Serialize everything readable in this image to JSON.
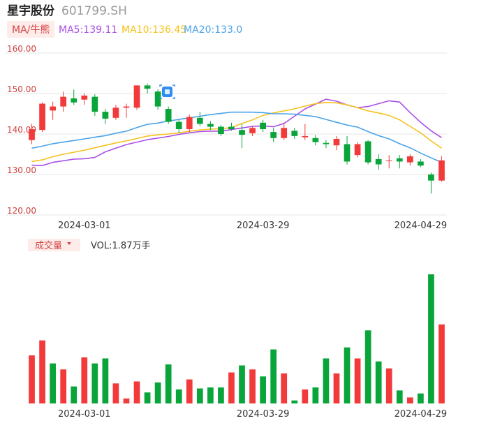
{
  "header": {
    "stock_name": "星宇股份",
    "stock_code": "601799.SH",
    "ma_mode": "MA/牛熊",
    "ma5": "MA5:139.11",
    "ma10": "MA10:136.45",
    "ma20": "MA20:133.0"
  },
  "volume_header": {
    "label": "成交量",
    "vol": "VOL:1.87万手"
  },
  "colors": {
    "up": "#f23a3a",
    "down": "#0aa53a",
    "ma5": "#a94ee6",
    "ma10": "#f5c21b",
    "ma20": "#4aa3ea",
    "axis_text": "#d14040",
    "grid": "#e6e6e6",
    "badge_bg": "#fdecea",
    "badge_text": "#d64545"
  },
  "chart_data": [
    {
      "type": "candlestick",
      "title": "",
      "ylim": [
        120,
        160
      ],
      "yticks": [
        "160.00",
        "150.00",
        "140.00",
        "130.00",
        "120.00"
      ],
      "x_tick_labels": [
        {
          "index": 5,
          "label": "2024-03-01"
        },
        {
          "index": 22,
          "label": "2024-03-29"
        },
        {
          "index": 37,
          "label": "2024-04-29"
        }
      ],
      "candles": [
        {
          "o": 138.5,
          "c": 141.2,
          "h": 142.5,
          "l": 137.5
        },
        {
          "o": 141.0,
          "c": 147.5,
          "h": 147.8,
          "l": 140.5
        },
        {
          "o": 145.8,
          "c": 146.8,
          "h": 148.0,
          "l": 143.5
        },
        {
          "o": 146.8,
          "c": 149.2,
          "h": 150.5,
          "l": 145.5
        },
        {
          "o": 148.8,
          "c": 147.8,
          "h": 151.0,
          "l": 147.2
        },
        {
          "o": 148.5,
          "c": 149.5,
          "h": 150.0,
          "l": 147.2
        },
        {
          "o": 149.2,
          "c": 145.5,
          "h": 149.8,
          "l": 144.5
        },
        {
          "o": 145.5,
          "c": 143.8,
          "h": 146.2,
          "l": 142.5
        },
        {
          "o": 144.0,
          "c": 146.5,
          "h": 147.2,
          "l": 143.5
        },
        {
          "o": 146.5,
          "c": 146.8,
          "h": 147.5,
          "l": 144.0
        },
        {
          "o": 146.5,
          "c": 152.0,
          "h": 152.0,
          "l": 146.0
        },
        {
          "o": 152.0,
          "c": 151.2,
          "h": 152.5,
          "l": 150.0
        },
        {
          "o": 150.5,
          "c": 146.8,
          "h": 151.0,
          "l": 146.0
        },
        {
          "o": 146.2,
          "c": 143.0,
          "h": 146.8,
          "l": 142.5
        },
        {
          "o": 143.0,
          "c": 141.2,
          "h": 143.5,
          "l": 140.2
        },
        {
          "o": 141.2,
          "c": 144.2,
          "h": 144.8,
          "l": 140.5
        },
        {
          "o": 144.0,
          "c": 142.5,
          "h": 145.5,
          "l": 142.0
        },
        {
          "o": 142.5,
          "c": 141.8,
          "h": 143.2,
          "l": 141.0
        },
        {
          "o": 141.8,
          "c": 140.0,
          "h": 142.2,
          "l": 139.5
        },
        {
          "o": 141.8,
          "c": 141.2,
          "h": 142.8,
          "l": 140.8
        },
        {
          "o": 141.0,
          "c": 139.8,
          "h": 142.5,
          "l": 136.5
        },
        {
          "o": 140.2,
          "c": 141.5,
          "h": 142.0,
          "l": 139.5
        },
        {
          "o": 142.8,
          "c": 141.2,
          "h": 143.5,
          "l": 140.5
        },
        {
          "o": 140.5,
          "c": 139.0,
          "h": 141.5,
          "l": 138.0
        },
        {
          "o": 139.0,
          "c": 141.5,
          "h": 142.8,
          "l": 138.5
        },
        {
          "o": 140.8,
          "c": 139.5,
          "h": 141.5,
          "l": 138.8
        },
        {
          "o": 139.2,
          "c": 139.5,
          "h": 142.5,
          "l": 138.5
        },
        {
          "o": 139.0,
          "c": 138.0,
          "h": 139.8,
          "l": 137.2
        },
        {
          "o": 137.8,
          "c": 137.5,
          "h": 138.5,
          "l": 136.5
        },
        {
          "o": 137.2,
          "c": 138.8,
          "h": 139.5,
          "l": 136.0
        },
        {
          "o": 137.5,
          "c": 133.2,
          "h": 139.5,
          "l": 132.5
        },
        {
          "o": 134.8,
          "c": 137.5,
          "h": 138.0,
          "l": 134.2
        },
        {
          "o": 138.2,
          "c": 133.0,
          "h": 138.5,
          "l": 132.5
        },
        {
          "o": 133.8,
          "c": 132.5,
          "h": 135.0,
          "l": 131.2
        },
        {
          "o": 133.5,
          "c": 133.5,
          "h": 134.8,
          "l": 131.5
        },
        {
          "o": 134.0,
          "c": 133.2,
          "h": 134.8,
          "l": 131.5
        },
        {
          "o": 133.0,
          "c": 134.5,
          "h": 135.0,
          "l": 132.2
        },
        {
          "o": 133.2,
          "c": 132.2,
          "h": 133.8,
          "l": 131.8
        },
        {
          "o": 130.0,
          "c": 128.5,
          "h": 130.5,
          "l": 125.3
        },
        {
          "o": 128.5,
          "c": 133.5,
          "h": 134.5,
          "l": 128.2
        }
      ],
      "series": [
        {
          "name": "MA5",
          "values": [
            132.3,
            132.2,
            133.0,
            133.4,
            133.8,
            133.9,
            134.2,
            135.6,
            136.5,
            137.4,
            138.0,
            138.6,
            139.0,
            139.4,
            139.9,
            140.3,
            140.6,
            140.7,
            140.7,
            141.1,
            141.5,
            141.9,
            142.0,
            141.8,
            142.6,
            144.4,
            146.2,
            147.4,
            148.6,
            148.1,
            147.2,
            146.5,
            146.8,
            147.5,
            148.2,
            147.9,
            145.3,
            142.9,
            140.8,
            139.1
          ]
        },
        {
          "name": "MA10",
          "values": [
            133.2,
            133.6,
            134.4,
            135.0,
            135.5,
            136.0,
            136.6,
            137.2,
            137.8,
            138.3,
            138.9,
            139.5,
            139.8,
            140.0,
            140.3,
            140.7,
            141.0,
            141.2,
            141.3,
            141.6,
            142.6,
            143.5,
            144.6,
            145.2,
            145.7,
            146.2,
            146.9,
            147.5,
            147.8,
            147.7,
            147.2,
            146.5,
            145.7,
            145.2,
            144.6,
            143.5,
            141.9,
            140.3,
            138.3,
            136.5
          ]
        },
        {
          "name": "MA20",
          "values": [
            136.5,
            137.0,
            137.6,
            138.0,
            138.4,
            138.8,
            139.2,
            139.6,
            140.2,
            140.7,
            141.6,
            142.4,
            142.7,
            143.2,
            143.6,
            144.0,
            144.4,
            144.8,
            145.1,
            145.4,
            145.4,
            145.4,
            145.3,
            145.0,
            145.0,
            144.9,
            144.6,
            144.3,
            143.6,
            142.9,
            142.2,
            141.7,
            140.6,
            139.6,
            138.8,
            137.6,
            136.6,
            135.3,
            134.1,
            133.0
          ]
        }
      ]
    },
    {
      "type": "bar",
      "title": "",
      "series": [
        {
          "values": [
            {
              "v": 0.48,
              "dir": "up"
            },
            {
              "v": 0.63,
              "dir": "up"
            },
            {
              "v": 0.4,
              "dir": "down"
            },
            {
              "v": 0.34,
              "dir": "up"
            },
            {
              "v": 0.17,
              "dir": "down"
            },
            {
              "v": 0.46,
              "dir": "up"
            },
            {
              "v": 0.4,
              "dir": "down"
            },
            {
              "v": 0.45,
              "dir": "down"
            },
            {
              "v": 0.2,
              "dir": "up"
            },
            {
              "v": 0.05,
              "dir": "up"
            },
            {
              "v": 0.22,
              "dir": "up"
            },
            {
              "v": 0.11,
              "dir": "down"
            },
            {
              "v": 0.21,
              "dir": "down"
            },
            {
              "v": 0.39,
              "dir": "down"
            },
            {
              "v": 0.14,
              "dir": "down"
            },
            {
              "v": 0.24,
              "dir": "up"
            },
            {
              "v": 0.15,
              "dir": "down"
            },
            {
              "v": 0.16,
              "dir": "down"
            },
            {
              "v": 0.16,
              "dir": "down"
            },
            {
              "v": 0.31,
              "dir": "up"
            },
            {
              "v": 0.38,
              "dir": "down"
            },
            {
              "v": 0.34,
              "dir": "up"
            },
            {
              "v": 0.27,
              "dir": "down"
            },
            {
              "v": 0.54,
              "dir": "down"
            },
            {
              "v": 0.3,
              "dir": "up"
            },
            {
              "v": 0.03,
              "dir": "down"
            },
            {
              "v": 0.14,
              "dir": "up"
            },
            {
              "v": 0.16,
              "dir": "down"
            },
            {
              "v": 0.45,
              "dir": "down"
            },
            {
              "v": 0.3,
              "dir": "up"
            },
            {
              "v": 0.56,
              "dir": "down"
            },
            {
              "v": 0.45,
              "dir": "up"
            },
            {
              "v": 0.73,
              "dir": "down"
            },
            {
              "v": 0.42,
              "dir": "down"
            },
            {
              "v": 0.35,
              "dir": "up"
            },
            {
              "v": 0.13,
              "dir": "down"
            },
            {
              "v": 0.06,
              "dir": "up"
            },
            {
              "v": 0.1,
              "dir": "down"
            },
            {
              "v": 1.29,
              "dir": "down"
            },
            {
              "v": 0.79,
              "dir": "up"
            }
          ]
        }
      ],
      "x_tick_labels": [
        {
          "index": 5,
          "label": "2024-03-01"
        },
        {
          "index": 22,
          "label": "2024-03-29"
        },
        {
          "index": 37,
          "label": "2024-04-29"
        }
      ]
    }
  ]
}
